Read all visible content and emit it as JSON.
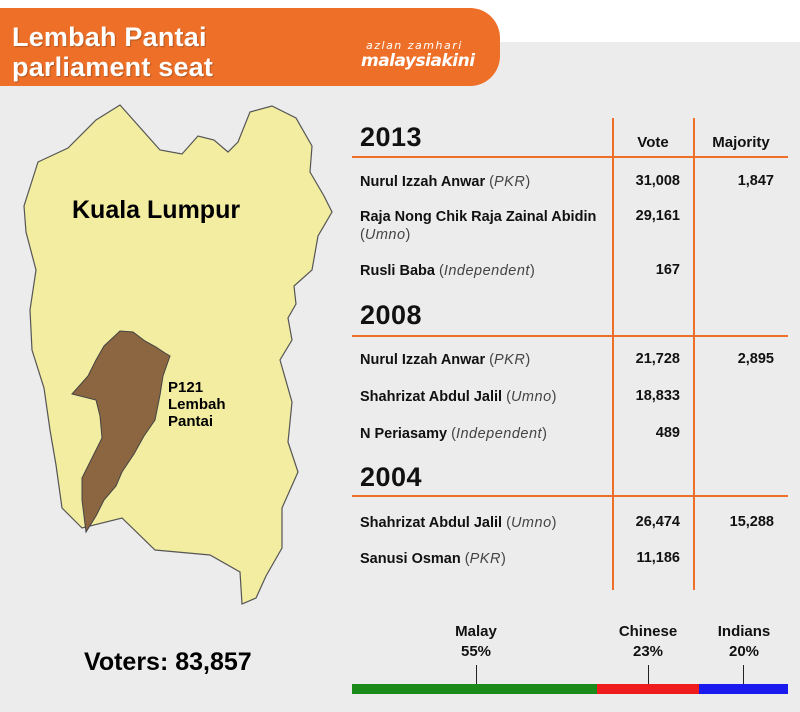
{
  "header": {
    "title_line1": "Lembah Pantai",
    "title_line2": "parliament seat",
    "credit": "azlan zamhari",
    "brand": "malaysiakini"
  },
  "map": {
    "city_label": "Kuala Lumpur",
    "seat_code": "P121",
    "seat_name_line1": "Lembah",
    "seat_name_line2": "Pantai",
    "city_color": "#f2eda0",
    "seat_color": "#8b6640"
  },
  "voters": {
    "label": "Voters: 83,857"
  },
  "table": {
    "vote_header": "Vote",
    "majority_header": "Majority",
    "elections": [
      {
        "year": "2013",
        "candidates": [
          {
            "name": "Nurul Izzah Anwar",
            "party": "PKR",
            "votes": "31,008",
            "majority": "1,847"
          },
          {
            "name": "Raja Nong Chik Raja Zainal Abidin",
            "party": "Umno",
            "votes": "29,161",
            "majority": ""
          },
          {
            "name": "Rusli Baba",
            "party": "Independent",
            "votes": "167",
            "majority": ""
          }
        ]
      },
      {
        "year": "2008",
        "candidates": [
          {
            "name": "Nurul Izzah Anwar",
            "party": "PKR",
            "votes": "21,728",
            "majority": "2,895"
          },
          {
            "name": "Shahrizat Abdul Jalil",
            "party": "Umno",
            "votes": "18,833",
            "majority": ""
          },
          {
            "name": "N Periasamy",
            "party": "Independent",
            "votes": "489",
            "majority": ""
          }
        ]
      },
      {
        "year": "2004",
        "candidates": [
          {
            "name": "Shahrizat Abdul Jalil",
            "party": "Umno",
            "votes": "26,474",
            "majority": "15,288"
          },
          {
            "name": "Sanusi Osman",
            "party": "PKR",
            "votes": "11,186",
            "majority": ""
          }
        ]
      }
    ]
  },
  "ethnicity": [
    {
      "name": "Malay",
      "percent": "55%",
      "share": 55,
      "color": "#1a8a1a"
    },
    {
      "name": "Chinese",
      "percent": "23%",
      "share": 23,
      "color": "#ee1c1c"
    },
    {
      "name": "Indians",
      "percent": "20%",
      "share": 20,
      "color": "#1a1aee"
    }
  ],
  "colors": {
    "accent": "#ee7028",
    "panel": "#ececec"
  }
}
